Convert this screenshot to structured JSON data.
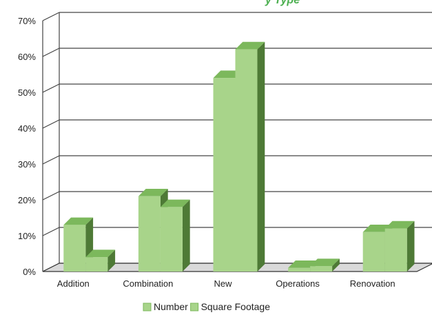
{
  "chart_data": {
    "type": "bar",
    "title_fragment": "y Type",
    "categories": [
      "Addition",
      "Combination",
      "New",
      "Operations",
      "Renovation"
    ],
    "series": [
      {
        "name": "Number",
        "values": [
          13,
          21,
          54,
          1,
          11
        ]
      },
      {
        "name": "Square Footage",
        "values": [
          4,
          18,
          62,
          1.5,
          12
        ]
      }
    ],
    "ylim": [
      0,
      70
    ],
    "yticks": [
      "0%",
      "10%",
      "20%",
      "30%",
      "40%",
      "50%",
      "60%",
      "70%"
    ],
    "ytick_values": [
      0,
      10,
      20,
      30,
      40,
      50,
      60,
      70
    ],
    "grid": true,
    "legend_position": "bottom",
    "colors": {
      "front": "#a8d48a",
      "top": "#7cb85c",
      "side": "#4e7a36",
      "title": "#4caf50",
      "floor": "#d9d9d9"
    }
  }
}
